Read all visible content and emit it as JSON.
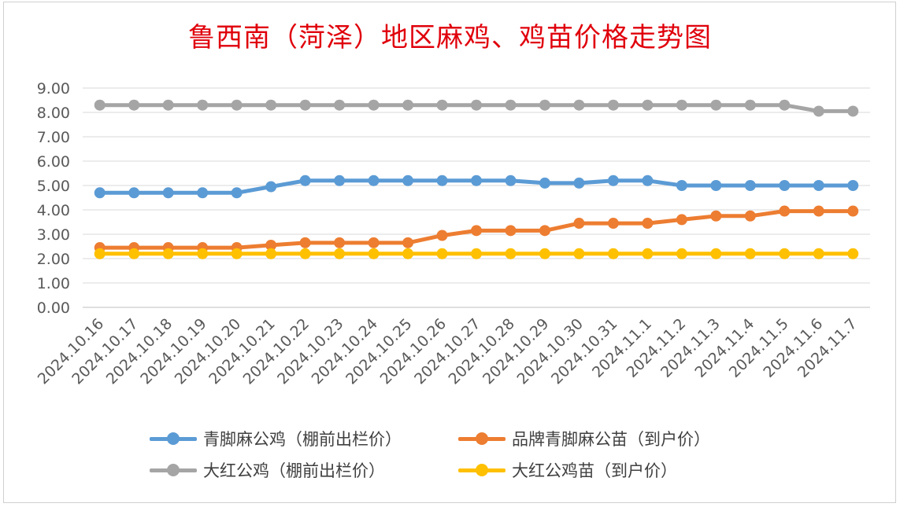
{
  "chart_data": {
    "type": "line",
    "title": "鲁西南（菏泽）地区麻鸡、鸡苗价格走势图",
    "categories": [
      "2024.10.16",
      "2024.10.17",
      "2024.10.18",
      "2024.10.19",
      "2024.10.20",
      "2024.10.21",
      "2024.10.22",
      "2024.10.23",
      "2024.10.24",
      "2024.10.25",
      "2024.10.26",
      "2024.10.27",
      "2024.10.28",
      "2024.10.29",
      "2024.10.30",
      "2024.10.31",
      "2024.11.1",
      "2024.11.2",
      "2024.11.3",
      "2024.11.4",
      "2024.11.5",
      "2024.11.6",
      "2024.11.7"
    ],
    "ylim": [
      0,
      9
    ],
    "yticks": [
      "0.00",
      "1.00",
      "2.00",
      "3.00",
      "4.00",
      "5.00",
      "6.00",
      "7.00",
      "8.00",
      "9.00"
    ],
    "grid": true,
    "legend_position": "bottom",
    "series": [
      {
        "name": "青脚麻公鸡（棚前出栏价）",
        "color": "#5b9bd5",
        "values": [
          4.7,
          4.7,
          4.7,
          4.7,
          4.7,
          4.95,
          5.2,
          5.2,
          5.2,
          5.2,
          5.2,
          5.2,
          5.2,
          5.1,
          5.1,
          5.2,
          5.2,
          5.0,
          5.0,
          5.0,
          5.0,
          5.0,
          5.0
        ]
      },
      {
        "name": "品牌青脚麻公苗（到户价）",
        "color": "#ed7d31",
        "values": [
          2.45,
          2.45,
          2.45,
          2.45,
          2.45,
          2.55,
          2.65,
          2.65,
          2.65,
          2.65,
          2.95,
          3.15,
          3.15,
          3.15,
          3.45,
          3.45,
          3.45,
          3.6,
          3.75,
          3.75,
          3.95,
          3.95,
          3.95
        ]
      },
      {
        "name": "大红公鸡（棚前出栏价）",
        "color": "#a5a5a5",
        "values": [
          8.3,
          8.3,
          8.3,
          8.3,
          8.3,
          8.3,
          8.3,
          8.3,
          8.3,
          8.3,
          8.3,
          8.3,
          8.3,
          8.3,
          8.3,
          8.3,
          8.3,
          8.3,
          8.3,
          8.3,
          8.3,
          8.05,
          8.05
        ]
      },
      {
        "name": "大红公鸡苗（到户价）",
        "color": "#ffc000",
        "values": [
          2.2,
          2.2,
          2.2,
          2.2,
          2.2,
          2.2,
          2.2,
          2.2,
          2.2,
          2.2,
          2.2,
          2.2,
          2.2,
          2.2,
          2.2,
          2.2,
          2.2,
          2.2,
          2.2,
          2.2,
          2.2,
          2.2,
          2.2
        ]
      }
    ]
  }
}
